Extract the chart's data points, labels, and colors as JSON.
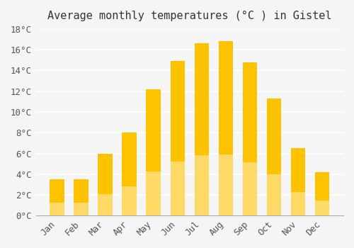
{
  "title": "Average monthly temperatures (°C ) in Gistel",
  "months": [
    "Jan",
    "Feb",
    "Mar",
    "Apr",
    "May",
    "Jun",
    "Jul",
    "Aug",
    "Sep",
    "Oct",
    "Nov",
    "Dec"
  ],
  "values": [
    3.5,
    3.5,
    6.0,
    8.0,
    12.2,
    14.9,
    16.6,
    16.8,
    14.8,
    11.3,
    6.5,
    4.2
  ],
  "bar_color_top": "#FFC200",
  "bar_color_bottom": "#FFD966",
  "ylim": [
    0,
    18
  ],
  "yticks": [
    0,
    2,
    4,
    6,
    8,
    10,
    12,
    14,
    16,
    18
  ],
  "ytick_labels": [
    "0°C",
    "2°C",
    "4°C",
    "6°C",
    "8°C",
    "10°C",
    "12°C",
    "14°C",
    "16°C",
    "18°C"
  ],
  "background_color": "#f5f5f5",
  "grid_color": "#ffffff",
  "title_fontsize": 11,
  "tick_fontsize": 9,
  "bar_width": 0.6
}
